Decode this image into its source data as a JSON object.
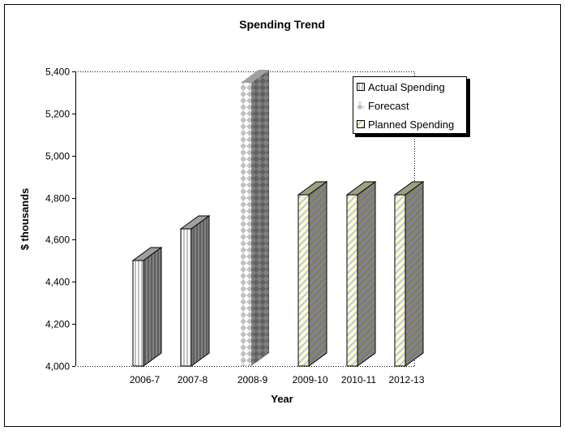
{
  "chart_data": {
    "type": "bar",
    "title": "Spending Trend",
    "xlabel": "Year",
    "ylabel": "$ thousands",
    "categories": [
      "2006-7",
      "2007-8",
      "2008-9",
      "2009-10",
      "2010-11",
      "2012-13"
    ],
    "values": [
      4500,
      4650,
      5345,
      4815,
      4815,
      4815
    ],
    "bar_series": [
      "Actual Spending",
      "Actual Spending",
      "Forecast",
      "Planned Spending",
      "Planned Spending",
      "Planned Spending"
    ],
    "ylim": [
      4000,
      5400
    ],
    "yticks": [
      4000,
      4200,
      4400,
      4600,
      4800,
      5000,
      5200,
      5400
    ],
    "ytick_labels": [
      "4,000",
      "4,200",
      "4,400",
      "4,600",
      "4,800",
      "5,000",
      "5,200",
      "5,400"
    ],
    "grid": false,
    "legend_position": "top-right",
    "legend": [
      {
        "name": "Actual Spending",
        "pattern": "vertical-stripes",
        "color": "#c0c0c0"
      },
      {
        "name": "Forecast",
        "pattern": "diamonds",
        "color": "#c0c0c0"
      },
      {
        "name": "Planned Spending",
        "pattern": "diagonal-stripes",
        "color": "#ffffc0"
      }
    ],
    "style": "3d-bar"
  }
}
